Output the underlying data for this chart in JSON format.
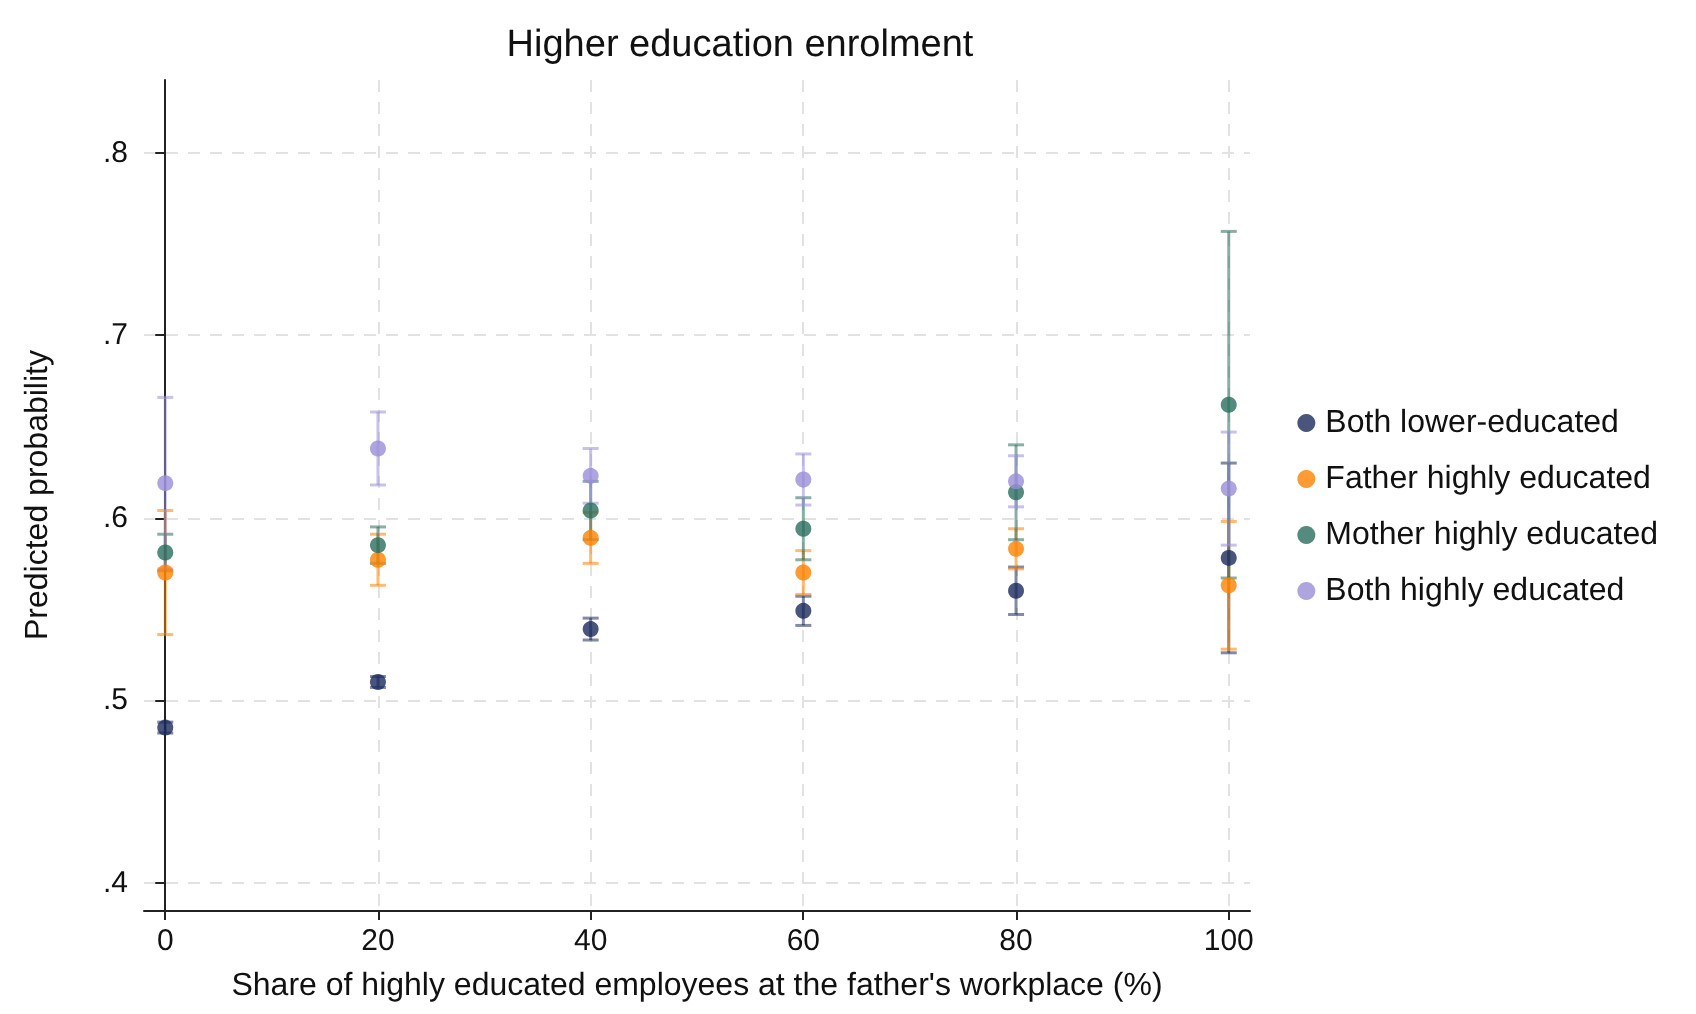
{
  "chart_data": {
    "type": "scatter",
    "title": "Higher education enrolment",
    "xlabel": "Share of highly educated employees at the father's workplace (%)",
    "ylabel": "Predicted probability",
    "x": [
      0,
      20,
      40,
      60,
      80,
      100
    ],
    "series": [
      {
        "name": "Both lower-educated",
        "color": "#1b2a5c",
        "values": [
          0.485,
          0.51,
          0.539,
          0.549,
          0.56,
          0.578
        ],
        "errors": [
          0.003,
          0.003,
          0.006,
          0.008,
          0.013,
          0.052
        ]
      },
      {
        "name": "Father highly educated",
        "color": "#ff8200",
        "values": [
          0.57,
          0.577,
          0.589,
          0.57,
          0.583,
          0.563
        ],
        "errors": [
          0.034,
          0.014,
          0.014,
          0.012,
          0.011,
          0.035
        ]
      },
      {
        "name": "Mother highly educated",
        "color": "#2a6e5e",
        "values": [
          0.581,
          0.585,
          0.604,
          0.594,
          0.614,
          0.662
        ],
        "errors": [
          0.01,
          0.01,
          0.016,
          0.017,
          0.026,
          0.095
        ]
      },
      {
        "name": "Both highly educated",
        "color": "#9a8fd8",
        "values": [
          0.619,
          0.638,
          0.623,
          0.621,
          0.62,
          0.616
        ],
        "errors": [
          0.047,
          0.02,
          0.015,
          0.014,
          0.014,
          0.031
        ]
      }
    ],
    "xlim": [
      -2,
      102
    ],
    "xticks": [
      0,
      20,
      40,
      60,
      80,
      100
    ],
    "ylim": [
      0.385,
      0.84
    ],
    "yticks": [
      {
        "value": 0.4,
        "label": ".4"
      },
      {
        "value": 0.5,
        "label": ".5"
      },
      {
        "value": 0.6,
        "label": ".6"
      },
      {
        "value": 0.7,
        "label": ".7"
      },
      {
        "value": 0.8,
        "label": ".8"
      }
    ],
    "grid": true,
    "legend": "right",
    "marker": "circle"
  }
}
